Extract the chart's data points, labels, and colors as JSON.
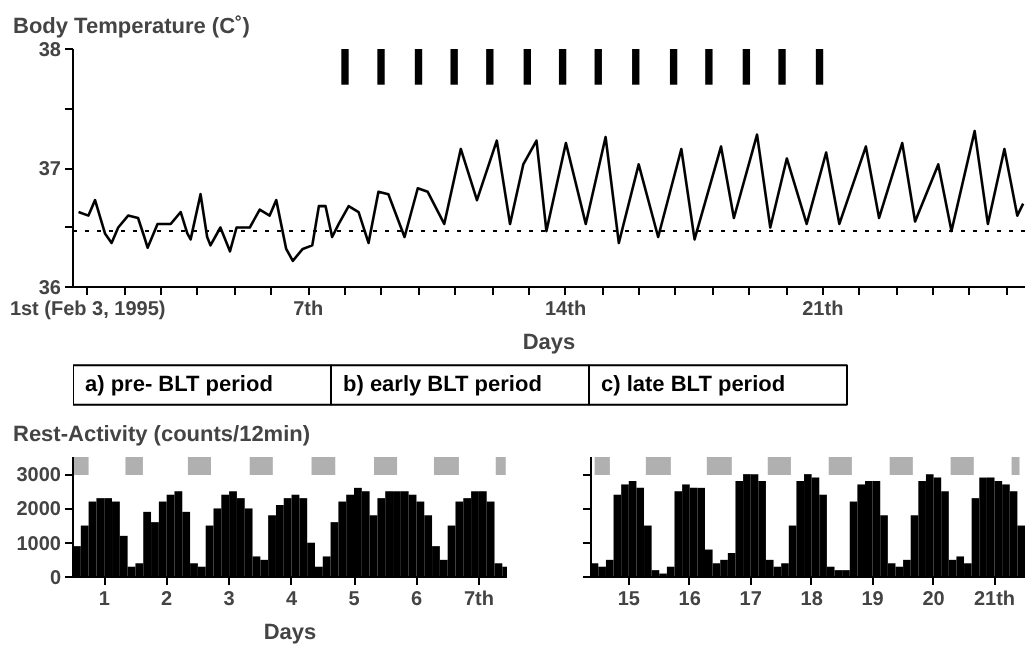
{
  "chart_data": [
    {
      "type": "line",
      "title": "Body Temperature (C˚)",
      "xlabel": "Days",
      "xlim": [
        0.6,
        26.5
      ],
      "ylim": [
        36,
        38
      ],
      "xticks": [
        {
          "value": 1,
          "label": "1st (Feb 3, 1995)"
        },
        {
          "value": 2,
          "label": null
        },
        {
          "value": 3,
          "label": null
        },
        {
          "value": 4,
          "label": null
        },
        {
          "value": 5,
          "label": null
        },
        {
          "value": 6,
          "label": null
        },
        {
          "value": 7,
          "label": "7th"
        },
        {
          "value": 8,
          "label": null
        },
        {
          "value": 9,
          "label": null
        },
        {
          "value": 10,
          "label": null
        },
        {
          "value": 11,
          "label": null
        },
        {
          "value": 12,
          "label": null
        },
        {
          "value": 13,
          "label": null
        },
        {
          "value": 14,
          "label": "14th"
        },
        {
          "value": 15,
          "label": null
        },
        {
          "value": 16,
          "label": null
        },
        {
          "value": 17,
          "label": null
        },
        {
          "value": 18,
          "label": null
        },
        {
          "value": 19,
          "label": null
        },
        {
          "value": 20,
          "label": null
        },
        {
          "value": 21,
          "label": "21th"
        },
        {
          "value": 22,
          "label": null
        },
        {
          "value": 23,
          "label": null
        },
        {
          "value": 24,
          "label": null
        },
        {
          "value": 25,
          "label": null
        },
        {
          "value": 26,
          "label": null
        }
      ],
      "yticks": [
        36,
        {
          "value": 36.5,
          "label": null
        },
        37,
        {
          "value": 37.5,
          "label": null
        },
        38
      ],
      "line_style": "solid",
      "marker": "none",
      "series": [
        {
          "color": "#000000",
          "x": [
            0.75,
            1.02,
            1.2,
            1.47,
            1.65,
            1.83,
            2.1,
            2.37,
            2.54,
            2.63,
            2.9,
            3.26,
            3.53,
            3.71,
            3.8,
            4.07,
            4.25,
            4.34,
            4.61,
            4.87,
            5.05,
            5.41,
            5.68,
            5.95,
            6.13,
            6.4,
            6.58,
            6.85,
            7.11,
            7.29,
            7.47,
            7.65,
            7.83,
            8.1,
            8.37,
            8.64,
            8.91,
            9.18,
            9.62,
            9.98,
            10.25,
            10.7,
            11.15,
            11.59,
            12.13,
            12.49,
            12.85,
            13.21,
            13.48,
            14.01,
            14.55,
            15.09,
            15.45,
            15.99,
            16.52,
            17.15,
            17.51,
            18.23,
            18.58,
            19.21,
            19.57,
            20.02,
            20.56,
            21.09,
            21.45,
            22.17,
            22.53,
            23.16,
            23.51,
            24.14,
            24.5,
            25.13,
            25.49,
            25.94,
            26.29,
            26.45
          ],
          "values": [
            36.63,
            36.6,
            36.73,
            36.45,
            36.37,
            36.5,
            36.6,
            36.58,
            36.42,
            36.33,
            36.53,
            36.53,
            36.63,
            36.45,
            36.4,
            36.78,
            36.42,
            36.35,
            36.5,
            36.3,
            36.5,
            36.5,
            36.65,
            36.6,
            36.73,
            36.32,
            36.22,
            36.32,
            36.35,
            36.68,
            36.68,
            36.42,
            36.53,
            36.68,
            36.63,
            36.37,
            36.8,
            36.78,
            36.42,
            36.83,
            36.8,
            36.53,
            37.16,
            36.73,
            37.23,
            36.53,
            37.03,
            37.23,
            36.47,
            37.21,
            36.53,
            37.26,
            36.37,
            37.03,
            36.42,
            37.16,
            36.4,
            37.18,
            36.58,
            37.28,
            36.5,
            37.08,
            36.53,
            37.13,
            36.53,
            37.18,
            36.58,
            37.21,
            36.55,
            37.03,
            36.47,
            37.31,
            36.53,
            37.16,
            36.6,
            36.7
          ]
        }
      ],
      "ref_lines": [
        {
          "axis": "y",
          "value": 36.47,
          "line_style": "dotted",
          "color": "#000000"
        }
      ],
      "bands": [
        {
          "axis": "x",
          "from": 7.9,
          "to": 8.1,
          "color": "#000000"
        },
        {
          "axis": "x",
          "from": 8.88,
          "to": 9.08,
          "color": "#000000"
        },
        {
          "axis": "x",
          "from": 9.9,
          "to": 10.1,
          "color": "#000000"
        },
        {
          "axis": "x",
          "from": 10.87,
          "to": 11.07,
          "color": "#000000"
        },
        {
          "axis": "x",
          "from": 11.84,
          "to": 12.04,
          "color": "#000000"
        },
        {
          "axis": "x",
          "from": 12.86,
          "to": 13.06,
          "color": "#000000"
        },
        {
          "axis": "x",
          "from": 13.82,
          "to": 14.02,
          "color": "#000000"
        },
        {
          "axis": "x",
          "from": 14.79,
          "to": 14.99,
          "color": "#000000"
        },
        {
          "axis": "x",
          "from": 15.81,
          "to": 16.01,
          "color": "#000000"
        },
        {
          "axis": "x",
          "from": 16.84,
          "to": 17.04,
          "color": "#000000"
        },
        {
          "axis": "x",
          "from": 17.8,
          "to": 18.0,
          "color": "#000000"
        },
        {
          "axis": "x",
          "from": 18.82,
          "to": 19.02,
          "color": "#000000"
        },
        {
          "axis": "x",
          "from": 19.79,
          "to": 19.99,
          "color": "#000000"
        },
        {
          "axis": "x",
          "from": 20.81,
          "to": 21.01,
          "color": "#000000"
        }
      ]
    },
    {
      "type": "other",
      "annotations": [
        "a)  pre- BLT period",
        "b)  early BLT period",
        "c)  late BLT period"
      ]
    },
    {
      "type": "bar",
      "title": "Rest-Activity (counts/12min)",
      "xlabel": "Days",
      "xlim": [
        0.5,
        7.45
      ],
      "ylim": [
        0,
        3500
      ],
      "xticks": [
        1,
        2,
        3,
        4,
        5,
        6,
        {
          "value": 7,
          "label": "7th"
        }
      ],
      "yticks": [
        0,
        1000,
        2000,
        3000
      ],
      "series": [
        {
          "color": "#000000",
          "x": [
            0.5625,
            0.6875,
            0.8125,
            0.9375,
            1.0625,
            1.1875,
            1.3125,
            1.4375,
            1.5625,
            1.6875,
            1.8125,
            1.9375,
            2.0625,
            2.1875,
            2.3125,
            2.4375,
            2.5625,
            2.6875,
            2.8125,
            2.9375,
            3.0625,
            3.1875,
            3.3125,
            3.4375,
            3.5625,
            3.6875,
            3.8125,
            3.9375,
            4.0625,
            4.1875,
            4.3125,
            4.4375,
            4.5625,
            4.6875,
            4.8125,
            4.9375,
            5.0625,
            5.1875,
            5.3125,
            5.4375,
            5.5625,
            5.6875,
            5.8125,
            5.9375,
            6.0625,
            6.1875,
            6.3125,
            6.4375,
            6.5625,
            6.6875,
            6.8125,
            6.9375,
            7.0625,
            7.1875,
            7.3125,
            7.4375
          ],
          "values": [
            900,
            1500,
            2200,
            2300,
            2300,
            2200,
            1200,
            300,
            400,
            1900,
            1600,
            2200,
            2400,
            2500,
            1900,
            400,
            300,
            1500,
            2000,
            2400,
            2500,
            2300,
            2000,
            600,
            500,
            1800,
            2100,
            2300,
            2400,
            2300,
            1000,
            300,
            600,
            1600,
            2200,
            2400,
            2600,
            2500,
            1800,
            2300,
            2500,
            2500,
            2500,
            2400,
            2200,
            1800,
            900,
            500,
            1500,
            2200,
            2300,
            2500,
            2500,
            2200,
            400,
            300
          ]
        }
      ],
      "bands": [
        {
          "axis": "x",
          "from": 0.5,
          "to": 0.75,
          "color": "#b0b0b0"
        },
        {
          "axis": "x",
          "from": 1.34,
          "to": 1.62,
          "color": "#b0b0b0"
        },
        {
          "axis": "x",
          "from": 2.34,
          "to": 2.71,
          "color": "#b0b0b0"
        },
        {
          "axis": "x",
          "from": 3.33,
          "to": 3.7,
          "color": "#b0b0b0"
        },
        {
          "axis": "x",
          "from": 4.32,
          "to": 4.7,
          "color": "#b0b0b0"
        },
        {
          "axis": "x",
          "from": 5.32,
          "to": 5.69,
          "color": "#b0b0b0"
        },
        {
          "axis": "x",
          "from": 6.28,
          "to": 6.68,
          "color": "#b0b0b0"
        },
        {
          "axis": "x",
          "from": 7.27,
          "to": 7.43,
          "color": "#b0b0b0"
        }
      ]
    },
    {
      "type": "bar",
      "tick_labels": "x",
      "xlim": [
        14.38,
        21.5
      ],
      "ylim": [
        0,
        3500
      ],
      "xticks": [
        15,
        16,
        17,
        18,
        19,
        20,
        {
          "value": 21,
          "label": "21th"
        }
      ],
      "yticks": [
        0,
        1000,
        2000,
        3000
      ],
      "series": [
        {
          "color": "#000000",
          "x": [
            14.4375,
            14.5625,
            14.6875,
            14.8125,
            14.9375,
            15.0625,
            15.1875,
            15.3125,
            15.4375,
            15.5625,
            15.6875,
            15.8125,
            15.9375,
            16.0625,
            16.1875,
            16.3125,
            16.4375,
            16.5625,
            16.6875,
            16.8125,
            16.9375,
            17.0625,
            17.1875,
            17.3125,
            17.4375,
            17.5625,
            17.6875,
            17.8125,
            17.9375,
            18.0625,
            18.1875,
            18.3125,
            18.4375,
            18.5625,
            18.6875,
            18.8125,
            18.9375,
            19.0625,
            19.1875,
            19.3125,
            19.4375,
            19.5625,
            19.6875,
            19.8125,
            19.9375,
            20.0625,
            20.1875,
            20.3125,
            20.4375,
            20.5625,
            20.6875,
            20.8125,
            20.9375,
            21.0625,
            21.1875,
            21.3125,
            21.4375
          ],
          "values": [
            400,
            300,
            500,
            2400,
            2700,
            2800,
            2600,
            1500,
            200,
            100,
            300,
            2500,
            2700,
            2600,
            2600,
            800,
            400,
            500,
            700,
            2800,
            3000,
            3000,
            2800,
            500,
            300,
            400,
            1500,
            2800,
            3000,
            2900,
            2400,
            300,
            200,
            200,
            2200,
            2700,
            2800,
            2800,
            1800,
            400,
            300,
            500,
            1800,
            2800,
            3000,
            2900,
            2500,
            500,
            600,
            400,
            2300,
            2900,
            2900,
            2800,
            2700,
            2500,
            1500
          ]
        }
      ],
      "bands": [
        {
          "axis": "x",
          "from": 14.44,
          "to": 14.69,
          "color": "#b0b0b0"
        },
        {
          "axis": "x",
          "from": 15.28,
          "to": 15.69,
          "color": "#b0b0b0"
        },
        {
          "axis": "x",
          "from": 16.28,
          "to": 16.69,
          "color": "#b0b0b0"
        },
        {
          "axis": "x",
          "from": 17.28,
          "to": 17.66,
          "color": "#b0b0b0"
        },
        {
          "axis": "x",
          "from": 18.28,
          "to": 18.66,
          "color": "#b0b0b0"
        },
        {
          "axis": "x",
          "from": 19.28,
          "to": 19.66,
          "color": "#b0b0b0"
        },
        {
          "axis": "x",
          "from": 20.28,
          "to": 20.66,
          "color": "#b0b0b0"
        },
        {
          "axis": "x",
          "from": 21.28,
          "to": 21.41,
          "color": "#b0b0b0"
        }
      ]
    }
  ]
}
